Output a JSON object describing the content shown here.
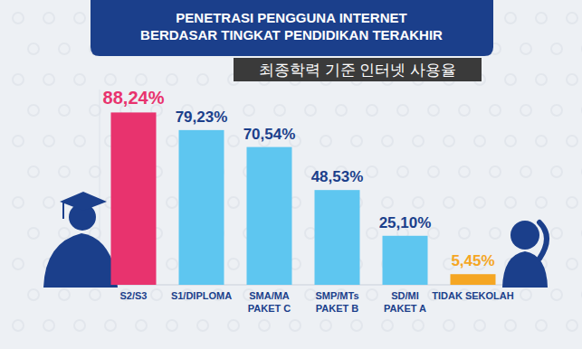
{
  "chart_data": {
    "type": "bar",
    "title": "PENETRASI PENGGUNA INTERNET\nBERDASAR TINGKAT PENDIDIKAN TERAKHIR",
    "subtitle": "최종학력 기준 인터넷 사용율",
    "categories": [
      "S2/S3",
      "S1/DIPLOMA",
      "SMA/MA\nPAKET C",
      "SMP/MTs\nPAKET B",
      "SD/MI\nPAKET A",
      "TIDAK SEKOLAH"
    ],
    "values": [
      88.24,
      79.23,
      70.54,
      48.53,
      25.1,
      5.45
    ],
    "value_labels": [
      "88,24%",
      "79,23%",
      "70,54%",
      "48,53%",
      "25,10%",
      "5,45%"
    ],
    "colors": [
      "#e8336e",
      "#5ec6f0",
      "#5ec6f0",
      "#5ec6f0",
      "#5ec6f0",
      "#f5a623"
    ],
    "ylim": [
      0,
      100
    ],
    "grid": false,
    "data_labels": true,
    "tick_labels": "x"
  }
}
